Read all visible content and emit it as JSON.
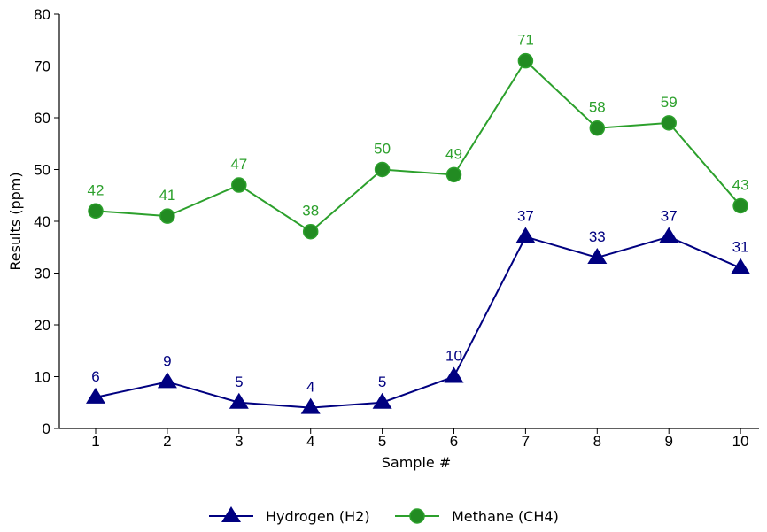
{
  "chart_data": {
    "type": "line",
    "x": [
      1,
      2,
      3,
      4,
      5,
      6,
      7,
      8,
      9,
      10
    ],
    "xlabel": "Sample #",
    "ylabel": "Results (ppm)",
    "ylim": [
      0,
      80
    ],
    "yticks": [
      0,
      10,
      20,
      30,
      40,
      50,
      60,
      70,
      80
    ],
    "grid": false,
    "legend": "bottom-center",
    "series": [
      {
        "name": "Hydrogen (H2)",
        "values": [
          6,
          9,
          5,
          4,
          5,
          10,
          37,
          33,
          37,
          31
        ],
        "color": "#000080",
        "marker": "triangle"
      },
      {
        "name": "Methane (CH4)",
        "values": [
          42,
          41,
          47,
          38,
          50,
          49,
          71,
          58,
          59,
          43
        ],
        "color": "#2ca02c",
        "marker": "circle"
      }
    ]
  }
}
